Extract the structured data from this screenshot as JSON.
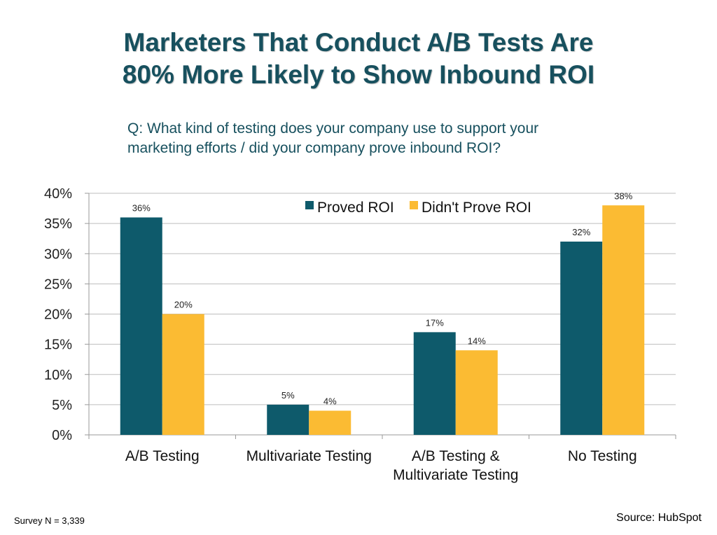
{
  "title_line1": "Marketers That Conduct A/B Tests Are",
  "title_line2": "80% More Likely to Show Inbound ROI",
  "question_line1": "Q: What kind of testing does your company use to support your",
  "question_line2": "marketing efforts / did your company prove inbound ROI?",
  "footer": {
    "survey": "Survey N = 3,339",
    "source": "Source: HubSpot"
  },
  "chart_data": {
    "type": "bar",
    "categories": [
      [
        "A/B Testing"
      ],
      [
        "Multivariate Testing"
      ],
      [
        "A/B Testing &",
        "Multivariate Testing"
      ],
      [
        "No Testing"
      ]
    ],
    "series": [
      {
        "name": "Proved ROI",
        "color": "#0e5a6b",
        "values": [
          36,
          5,
          17,
          32
        ],
        "labels": [
          "36%",
          "5%",
          "17%",
          "32%"
        ]
      },
      {
        "name": "Didn't Prove ROI",
        "color": "#fbbb33",
        "values": [
          20,
          4,
          14,
          38
        ],
        "labels": [
          "20%",
          "4%",
          "14%",
          "38%"
        ]
      }
    ],
    "ylim": [
      0,
      40
    ],
    "yticks": [
      "0%",
      "5%",
      "10%",
      "15%",
      "20%",
      "25%",
      "30%",
      "35%",
      "40%"
    ],
    "grid": true,
    "legend_position": "top-center"
  }
}
